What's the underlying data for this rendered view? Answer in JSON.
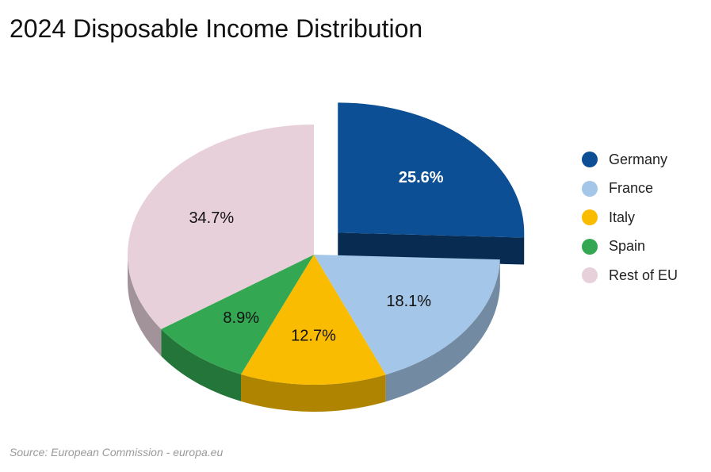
{
  "chart_data": {
    "type": "pie",
    "title": "2024 Disposable Income Distribution",
    "categories": [
      "Germany",
      "France",
      "Italy",
      "Spain",
      "Rest of EU"
    ],
    "values": [
      25.6,
      18.1,
      12.7,
      8.9,
      34.7
    ],
    "labels": [
      "25.6%",
      "18.1%",
      "12.7%",
      "8.9%",
      "34.7%"
    ],
    "colors": [
      "#0d4f94",
      "#a4c6e8",
      "#f9bc00",
      "#34a752",
      "#e8d0db"
    ],
    "exploded": "Germany",
    "style": "3d",
    "legend_position": "right"
  },
  "source": "Source: European Commission - europa.eu"
}
